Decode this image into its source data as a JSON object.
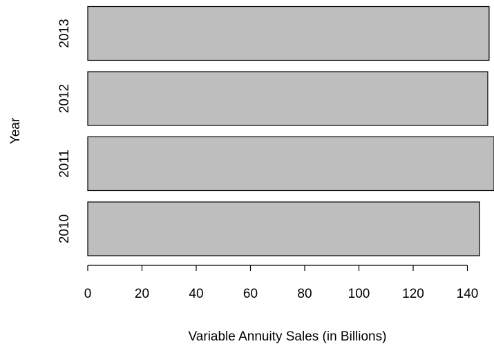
{
  "chart_data": {
    "type": "bar",
    "orientation": "horizontal",
    "categories": [
      "2010",
      "2011",
      "2012",
      "2013"
    ],
    "values": [
      144.5,
      158,
      147.5,
      148
    ],
    "xlabel": "Variable Annuity Sales (in Billions)",
    "ylabel": "Year",
    "xlim": [
      0,
      150
    ],
    "xticks": [
      0,
      20,
      40,
      60,
      80,
      100,
      120,
      140
    ],
    "grid": false,
    "bar_color": "#bebebe"
  }
}
